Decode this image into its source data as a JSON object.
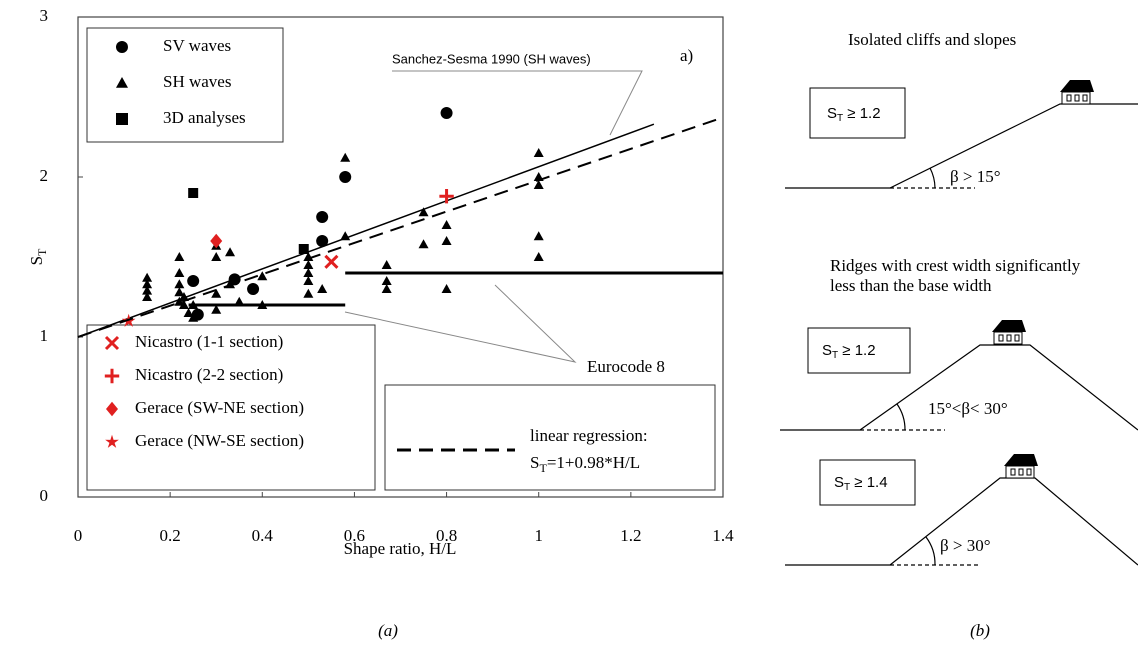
{
  "chart_data": {
    "type": "scatter",
    "x_label": "Shape ratio, H/L",
    "y_label": {
      "main": "S",
      "sub": "T"
    },
    "xlim": [
      0,
      1.4
    ],
    "ylim": [
      0,
      3
    ],
    "xticks": [
      0,
      0.2,
      0.4,
      0.6,
      0.8,
      1,
      1.2,
      1.4
    ],
    "yticks": [
      0,
      1,
      2,
      3
    ],
    "series": [
      {
        "name": "SV waves",
        "marker": "circle",
        "color": "#000000",
        "legend": "upper-left",
        "x": [
          0.25,
          0.26,
          0.34,
          0.38,
          0.53,
          0.53,
          0.58,
          0.8
        ],
        "values": [
          1.35,
          1.14,
          1.36,
          1.3,
          1.75,
          1.6,
          2.0,
          2.4
        ]
      },
      {
        "name": "SH waves",
        "marker": "triangle",
        "color": "#000000",
        "legend": "upper-left",
        "x": [
          0.15,
          0.15,
          0.15,
          0.15,
          0.22,
          0.22,
          0.22,
          0.22,
          0.22,
          0.23,
          0.23,
          0.24,
          0.25,
          0.25,
          0.3,
          0.3,
          0.3,
          0.3,
          0.33,
          0.33,
          0.35,
          0.4,
          0.4,
          0.5,
          0.5,
          0.5,
          0.5,
          0.5,
          0.53,
          0.58,
          0.58,
          0.67,
          0.67,
          0.67,
          0.75,
          0.75,
          0.8,
          0.8,
          0.8,
          1,
          1,
          1,
          1,
          1
        ],
        "values": [
          1.37,
          1.33,
          1.29,
          1.25,
          1.5,
          1.4,
          1.33,
          1.28,
          1.22,
          1.25,
          1.2,
          1.15,
          1.12,
          1.2,
          1.57,
          1.5,
          1.27,
          1.17,
          1.53,
          1.33,
          1.22,
          1.38,
          1.2,
          1.5,
          1.45,
          1.4,
          1.35,
          1.27,
          1.3,
          2.12,
          1.63,
          1.45,
          1.35,
          1.3,
          1.78,
          1.58,
          1.7,
          1.6,
          1.3,
          2.15,
          2.0,
          1.95,
          1.63,
          1.5
        ]
      },
      {
        "name": "3D analyses",
        "marker": "square",
        "color": "#000000",
        "legend": "upper-left",
        "x": [
          0.25,
          0.49
        ],
        "values": [
          1.9,
          1.55
        ]
      },
      {
        "name": "Nicastro (1-1 section)",
        "marker": "x",
        "color": "#e02020",
        "legend": "lower-left",
        "x": [
          0.55
        ],
        "values": [
          1.47
        ]
      },
      {
        "name": "Nicastro (2-2 section)",
        "marker": "plus",
        "color": "#e02020",
        "legend": "lower-left",
        "x": [
          0.8
        ],
        "values": [
          1.88
        ]
      },
      {
        "name": "Gerace (SW-NE section)",
        "marker": "diamond",
        "color": "#e02020",
        "legend": "lower-left",
        "x": [
          0.3
        ],
        "values": [
          1.6
        ]
      },
      {
        "name": "Gerace (NW-SE section)",
        "marker": "star",
        "color": "#e02020",
        "legend": "lower-left",
        "x": [
          0.11
        ],
        "values": [
          1.1
        ]
      },
      {
        "name": "linear regression:",
        "marker": "line",
        "style": "dashed",
        "color": "#000000",
        "legend": "lower-right",
        "formula": {
          "main": "S",
          "sub": "T",
          "rest": "=1+0.98*H/L"
        },
        "x": [
          0,
          1.4
        ],
        "values": [
          1,
          2.372
        ]
      }
    ],
    "lines": [
      {
        "style": "solid",
        "color": "#000000",
        "x": [
          0,
          1.25
        ],
        "values": [
          1,
          2.33
        ]
      },
      {
        "style": "thick",
        "color": "#000000",
        "x": [
          0.24,
          0.58
        ],
        "values": [
          1.2,
          1.2
        ]
      },
      {
        "style": "thick",
        "color": "#000000",
        "x": [
          0.58,
          1.4
        ],
        "values": [
          1.4,
          1.4
        ]
      }
    ],
    "annotations": [
      "a)",
      "Sanchez-Sesma 1990 (SH waves)",
      "Eurocode 8"
    ]
  },
  "diagram": {
    "panels": [
      {
        "title_lines": [
          "Isolated cliffs and slopes"
        ],
        "box": {
          "main": "S",
          "sub": "T",
          "rest": " ≥ 1.2"
        },
        "angle": "β > 15°"
      },
      {
        "title_lines": [
          "Ridges with crest width significantly",
          "less than the base width"
        ],
        "box": {
          "main": "S",
          "sub": "T",
          "rest": " ≥ 1.2"
        },
        "angle": "15°<β< 30°"
      },
      {
        "title_lines": [],
        "box": {
          "main": "S",
          "sub": "T",
          "rest": " ≥ 1.4"
        },
        "angle": "β > 30°"
      }
    ]
  },
  "captions": [
    "(a)",
    "(b)"
  ]
}
